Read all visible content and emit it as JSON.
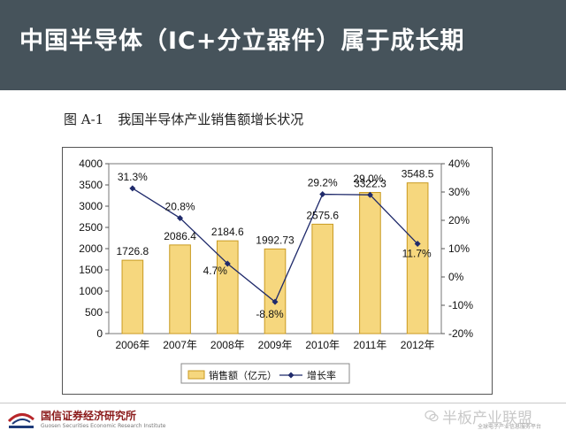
{
  "slide": {
    "title": "中国半导体（IC+分立器件）属于成长期"
  },
  "figure": {
    "number": "图 A-1",
    "caption": "我国半导体产业销售额增长状况"
  },
  "chart_data": {
    "type": "bar",
    "categories": [
      "2006年",
      "2007年",
      "2008年",
      "2009年",
      "2010年",
      "2011年",
      "2012年"
    ],
    "series": [
      {
        "name": "销售额（亿元）",
        "type": "bar",
        "axis": "left",
        "values": [
          1726.8,
          2086.4,
          2184.6,
          1992.73,
          2575.6,
          3322.3,
          3548.5
        ],
        "labels": [
          "1726.8",
          "2086.4",
          "2184.6",
          "1992.73",
          "2575.6",
          "3322.3",
          "3548.5"
        ]
      },
      {
        "name": "增长率",
        "type": "line",
        "axis": "right",
        "values": [
          31.3,
          20.8,
          4.7,
          -8.8,
          29.2,
          29.0,
          11.7
        ],
        "labels": [
          "31.3%",
          "20.8%",
          "4.7%",
          "-8.8%",
          "29.2%",
          "29.0%",
          "11.7%"
        ]
      }
    ],
    "y_left": {
      "min": 0,
      "max": 4000,
      "step": 500,
      "ticks": [
        "0",
        "500",
        "1000",
        "1500",
        "2000",
        "2500",
        "3000",
        "3500",
        "4000"
      ]
    },
    "y_right": {
      "min": -20,
      "max": 40,
      "step": 10,
      "ticks": [
        "-20%",
        "-10%",
        "0%",
        "10%",
        "20%",
        "30%",
        "40%"
      ]
    },
    "legend_position": "bottom",
    "grid": false,
    "colors": {
      "bar_fill": "#f6d77e",
      "bar_stroke": "#c99a20",
      "line": "#1f2a6b"
    }
  },
  "footer": {
    "org_name": "国信证券经济研究所",
    "org_sub": "Guosen Securities Economic Research Institute",
    "watermark": "半板产业联盟",
    "watermark_sub": "全球电子产业信息服务平台"
  }
}
